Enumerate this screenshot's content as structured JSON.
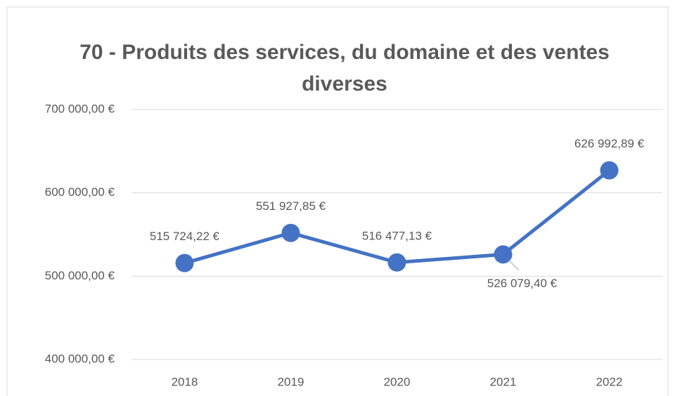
{
  "chart_data": {
    "type": "line",
    "title": "70 - Produits des services, du domaine et des ventes diverses",
    "categories": [
      "2018",
      "2019",
      "2020",
      "2021",
      "2022"
    ],
    "series": [
      {
        "name": "70 - Produits des services, du domaine et des ventes diverses",
        "color": "#4472c4",
        "values": [
          515724.22,
          551927.85,
          516477.13,
          526079.4,
          626992.89
        ],
        "value_labels": [
          "515 724,22 €",
          "551 927,85 €",
          "516 477,13 €",
          "526 079,40 €",
          "626 992,89 €"
        ]
      }
    ],
    "ylim": [
      400000,
      700000
    ],
    "yticks": [
      {
        "value": 400000,
        "label": "400 000,00 €"
      },
      {
        "value": 500000,
        "label": "500 000,00 €"
      },
      {
        "value": 600000,
        "label": "600 000,00 €"
      },
      {
        "value": 700000,
        "label": "700 000,00 €"
      }
    ],
    "grid": true
  }
}
